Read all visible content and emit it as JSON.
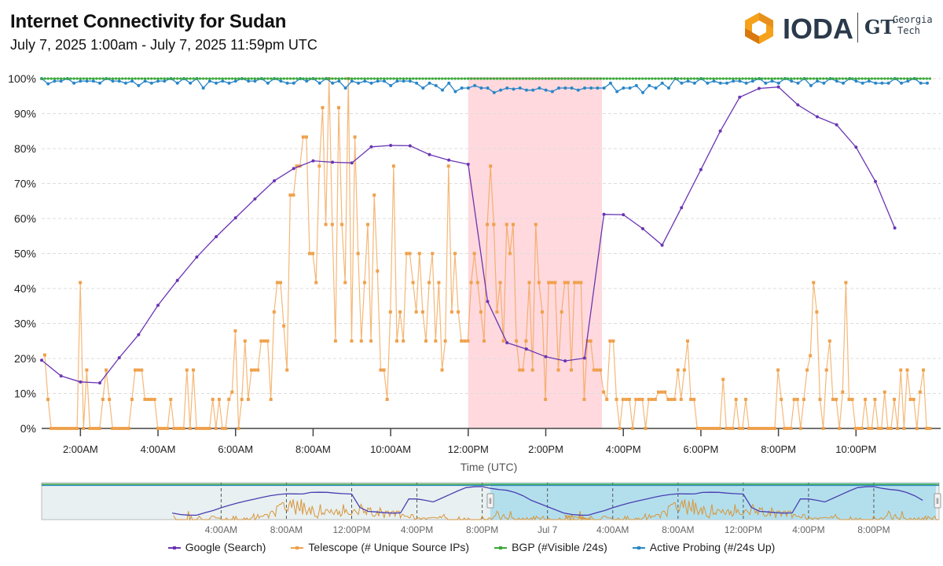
{
  "header": {
    "title": "Internet Connectivity for  Sudan",
    "subtitle": "July 7, 2025 1:00am - July 7, 2025 11:59pm UTC"
  },
  "logos": {
    "ioda": "IODA",
    "gt_mark": "GT",
    "gt_name_line1": "Georgia",
    "gt_name_line2": "Tech"
  },
  "colors": {
    "google": "#6a35b3",
    "telescope": "#f0a04b",
    "bgp": "#3aa83a",
    "probing": "#2a86c8",
    "outage": "#ffd9de"
  },
  "chart_data": {
    "type": "line",
    "title": "Internet Connectivity for  Sudan",
    "xlabel": "Time (UTC)",
    "ylabel": "",
    "xlim": [
      1.0,
      23.98
    ],
    "ylim": [
      0,
      100
    ],
    "grid": true,
    "legend_position": "bottom",
    "yticks": [
      "0%",
      "10%",
      "20%",
      "30%",
      "40%",
      "50%",
      "60%",
      "70%",
      "80%",
      "90%",
      "100%"
    ],
    "ytick_values": [
      0,
      10,
      20,
      30,
      40,
      50,
      60,
      70,
      80,
      90,
      100
    ],
    "xticks": [
      "2:00AM",
      "4:00AM",
      "6:00AM",
      "8:00AM",
      "10:00AM",
      "12:00PM",
      "2:00PM",
      "4:00PM",
      "6:00PM",
      "8:00PM",
      "10:00PM"
    ],
    "xtick_hours": [
      2,
      4,
      6,
      8,
      10,
      12,
      14,
      16,
      18,
      20,
      22
    ],
    "outage_band": {
      "start_hour": 12.0,
      "end_hour": 15.45
    },
    "series": [
      {
        "name": "Google (Search)",
        "key": "google",
        "x": [
          1.0,
          1.5,
          2.0,
          2.5,
          3.0,
          3.5,
          4.0,
          4.5,
          5.0,
          5.5,
          6.0,
          6.5,
          7.0,
          7.5,
          8.0,
          8.5,
          9.0,
          9.5,
          10.0,
          10.5,
          11.0,
          11.5,
          12.0,
          12.5,
          13.0,
          13.5,
          14.0,
          14.5,
          15.0,
          15.5,
          16.0,
          16.5,
          17.0,
          17.5,
          18.0,
          18.5,
          19.0,
          19.5,
          20.0,
          20.5,
          21.0,
          21.5,
          22.0,
          22.5,
          23.0
        ],
        "values": [
          19.5,
          15,
          13.3,
          13,
          20.2,
          26.8,
          35.2,
          42.3,
          49,
          54.8,
          60.2,
          65.6,
          70.8,
          74.3,
          76.5,
          76.1,
          75.9,
          80.5,
          80.9,
          80.8,
          78.3,
          76.7,
          75.5,
          36.3,
          24.5,
          22.7,
          20.5,
          19.3,
          20.1,
          61.2,
          61.1,
          57.1,
          52.4,
          63.1,
          74,
          85,
          94.7,
          97.2,
          97.6,
          92.5,
          89.1,
          86.8,
          80.4,
          70.6,
          57.3
        ]
      },
      {
        "name": "Telescope (# Unique Source IPs)",
        "key": "telescope",
        "x_start_hour": 1.08,
        "x_step_hours": 0.0833,
        "values": [
          21,
          8.3,
          0,
          0,
          0,
          0,
          0,
          0,
          0,
          0,
          0,
          41.7,
          0,
          16.7,
          0,
          0,
          0,
          0,
          8.3,
          16.7,
          8.3,
          0,
          0,
          0,
          0,
          0,
          0,
          8.3,
          16.7,
          16.7,
          16.7,
          8.3,
          8.3,
          8.3,
          8.3,
          0,
          0,
          0,
          0,
          8.3,
          0,
          0,
          0,
          0,
          16.7,
          0,
          16.7,
          0,
          0,
          0,
          0,
          0,
          8.3,
          0,
          8.3,
          0,
          0,
          8.3,
          10.4,
          27.9,
          0,
          8.3,
          25,
          8.3,
          16.7,
          16.7,
          16.7,
          25,
          25,
          25,
          8.3,
          33.3,
          41.7,
          41.7,
          29.3,
          16.7,
          66.7,
          66.7,
          75,
          75,
          83.3,
          83.3,
          50,
          50,
          41.7,
          75,
          91.7,
          58.3,
          100,
          58.3,
          25,
          91.7,
          58.3,
          41.7,
          100,
          25,
          83.3,
          50,
          25,
          41.7,
          58.3,
          25,
          66.7,
          45,
          16.7,
          16.7,
          8.3,
          33.3,
          75,
          25,
          33.3,
          25,
          50,
          50,
          41.7,
          33.3,
          50,
          33.3,
          25,
          41.7,
          50,
          25,
          41.7,
          16.7,
          25,
          75,
          33.3,
          50,
          33.3,
          25,
          25,
          25,
          41.7,
          50,
          41.7,
          33.3,
          25,
          58.3,
          75,
          58.3,
          33.3,
          41.7,
          25,
          58.3,
          50,
          58.3,
          25,
          16.7,
          16.7,
          25,
          41.7,
          16.7,
          58.3,
          41.7,
          33.3,
          8.3,
          41.7,
          41.7,
          41.7,
          16.7,
          33.3,
          41.7,
          41.7,
          16.7,
          41.7,
          41.7,
          41.7,
          8.3,
          25,
          25,
          16.7,
          16.7,
          16.7,
          10.4,
          8.3,
          25,
          25,
          8.3,
          0,
          8.3,
          8.3,
          8.3,
          0,
          8.3,
          8.3,
          8.3,
          0,
          8.3,
          8.3,
          8.3,
          10.4,
          10.4,
          10.4,
          8.3,
          8.3,
          8.3,
          16.7,
          8.3,
          16.7,
          25,
          8.3,
          8.3,
          0,
          0,
          0,
          0,
          0,
          0,
          0,
          0,
          14,
          0,
          0,
          0,
          8.3,
          0,
          0,
          8.3,
          0,
          0,
          0,
          0,
          0,
          0,
          0,
          0,
          0,
          16.7,
          8.3,
          0,
          0,
          0,
          8.3,
          8.3,
          0,
          8.3,
          16.7,
          20.8,
          41.7,
          33.3,
          8.3,
          0,
          16.7,
          25,
          8.3,
          8.3,
          0,
          10.4,
          41.7,
          8.3,
          8.3,
          0,
          0,
          0,
          8.3,
          0,
          0,
          8.3,
          0,
          0,
          10.4,
          0,
          0,
          8.3,
          0,
          16.7,
          0,
          16.7,
          8.3,
          8.3,
          0,
          10.4,
          16.7,
          0,
          0,
          0,
          8.3,
          0,
          0,
          0,
          0,
          0,
          0,
          0,
          8.3,
          0,
          0,
          0,
          0,
          16.7,
          8.3,
          16.7,
          0,
          25,
          8.3,
          0,
          0,
          0,
          0,
          14.6,
          0,
          0,
          8.3,
          8.3,
          0,
          0,
          8.3,
          0,
          0
        ]
      },
      {
        "name": "BGP (#Visible /24s)",
        "key": "bgp",
        "x_start_hour": 1.0,
        "x_step_hours": 0.0833,
        "constant_value": 100,
        "count": 276
      },
      {
        "name": "Active Probing (#/24s Up)",
        "key": "probing",
        "x_start_hour": 1.0,
        "x_step_hours": 0.1667,
        "values": [
          100,
          98.5,
          99.3,
          99.3,
          100,
          98.7,
          99.3,
          99.3,
          99.3,
          98.7,
          100,
          99.3,
          99.3,
          98.7,
          99.3,
          98,
          99.3,
          98.7,
          99.3,
          99.3,
          100,
          98.7,
          100,
          98.7,
          100,
          97.3,
          99.3,
          98.7,
          99.3,
          98.7,
          99.3,
          100,
          99.3,
          99.3,
          100,
          98.7,
          100,
          99.3,
          98.7,
          98.7,
          100,
          99.3,
          100,
          98.7,
          100,
          98.7,
          99.3,
          97.3,
          99.3,
          98.7,
          99.3,
          98.7,
          99.3,
          99.3,
          98,
          99.3,
          99.3,
          99.3,
          98.7,
          97.3,
          98.7,
          98,
          96.7,
          98.7,
          96.3,
          97.3,
          97.3,
          98,
          97.3,
          97.3,
          96,
          96.7,
          97.3,
          97,
          97.3,
          96.7,
          96.7,
          97.3,
          96.7,
          96.3,
          97.3,
          97.3,
          97.3,
          96.7,
          97.3,
          97.3,
          97.3,
          97.3,
          98.7,
          96.3,
          97.3,
          97.3,
          98,
          96,
          98,
          97.3,
          98.7,
          97.3,
          100,
          98.7,
          99.3,
          98.7,
          100,
          98.7,
          99.3,
          98.7,
          98.7,
          99.3,
          99.3,
          98.7,
          99.3,
          100,
          98.7,
          99.3,
          98.7,
          100,
          99.3,
          98.7,
          100,
          98,
          99.3,
          98.7,
          100,
          99.3,
          98.7,
          100,
          99.3,
          98.7,
          99.3,
          98.7,
          98.7,
          98.7,
          100,
          98.7,
          99.3,
          100,
          98.7,
          98.7,
          98.7,
          99.3,
          98.7,
          98.7,
          100,
          98.7,
          98.7
        ]
      }
    ],
    "legend": [
      "Google (Search)",
      "Telescope (# Unique Source IPs)",
      "BGP (#Visible /24s)",
      "Active Probing (#/24s Up)"
    ]
  },
  "navigator": {
    "xticks": [
      "4:00AM",
      "8:00AM",
      "12:00PM",
      "4:00PM",
      "8:00PM",
      "Jul 7",
      "4:00AM",
      "8:00AM",
      "12:00PM",
      "4:00PM",
      "8:00PM"
    ],
    "xtick_hours": [
      4,
      8,
      12,
      16,
      20,
      24,
      28,
      32,
      36,
      40,
      44
    ],
    "range_hours": [
      -7,
      48
    ],
    "selected_hours": [
      25,
      47.98
    ],
    "handle_glyph": "‖"
  }
}
